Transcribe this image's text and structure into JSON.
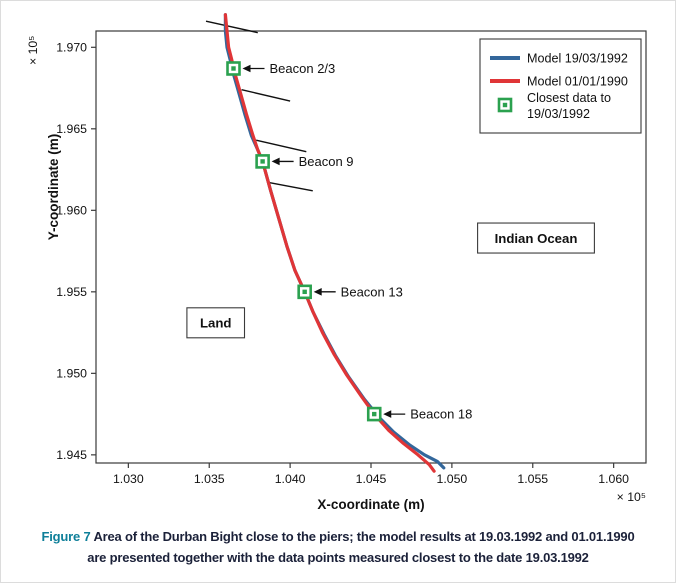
{
  "figure": {
    "label": "Figure 7",
    "caption_lines": [
      "Area of the Durban Bight close to the piers; the model results at 19.03.1992 and 01.01.1990",
      "are presented together with the data points measured closest to the date 19.03.1992"
    ]
  },
  "colors": {
    "model_1992": "#33679b",
    "model_1990": "#e03537",
    "closest_data": "#2ba14f",
    "caption_label": "#0e7f99",
    "caption_text": "#1b2139",
    "axis": "#3a3a3a",
    "text": "#111111"
  },
  "chart_data": {
    "type": "line",
    "title": "",
    "xlabel": "X-coordinate (m)",
    "ylabel": "Y-coordinate (m)",
    "axis_scale_label": "× 10⁵",
    "xlim": [
      1.028,
      1.062
    ],
    "ylim": [
      1.9445,
      1.971
    ],
    "xticks": [
      1.03,
      1.035,
      1.04,
      1.045,
      1.05,
      1.055,
      1.06
    ],
    "yticks": [
      1.945,
      1.95,
      1.955,
      1.96,
      1.965,
      1.97
    ],
    "tick_decimals": 3,
    "grid": false,
    "legend_position": "top-right",
    "series": [
      {
        "name": "Model 19/03/1992",
        "color_key": "model_1992",
        "points": [
          [
            1.036,
            1.972
          ],
          [
            1.036,
            1.971
          ],
          [
            1.0361,
            1.97
          ],
          [
            1.0363,
            1.9692
          ],
          [
            1.0364,
            1.9687
          ],
          [
            1.0368,
            1.9673
          ],
          [
            1.0372,
            1.9659
          ],
          [
            1.0376,
            1.9646
          ],
          [
            1.038,
            1.9637
          ],
          [
            1.0383,
            1.963
          ],
          [
            1.0388,
            1.9612
          ],
          [
            1.0393,
            1.9595
          ],
          [
            1.0398,
            1.9578
          ],
          [
            1.0403,
            1.9563
          ],
          [
            1.0409,
            1.955
          ],
          [
            1.0414,
            1.9538
          ],
          [
            1.0421,
            1.9524
          ],
          [
            1.0428,
            1.9511
          ],
          [
            1.0436,
            1.9498
          ],
          [
            1.0446,
            1.9484
          ],
          [
            1.0455,
            1.9473
          ],
          [
            1.0464,
            1.9464
          ],
          [
            1.0474,
            1.9456
          ],
          [
            1.0483,
            1.945
          ],
          [
            1.0491,
            1.9446
          ],
          [
            1.0495,
            1.9442
          ]
        ]
      },
      {
        "name": "Model 01/01/1990",
        "color_key": "model_1990",
        "points": [
          [
            1.036,
            1.972
          ],
          [
            1.0361,
            1.971
          ],
          [
            1.0362,
            1.97
          ],
          [
            1.0364,
            1.9692
          ],
          [
            1.0365,
            1.9687
          ],
          [
            1.0369,
            1.9673
          ],
          [
            1.0373,
            1.9659
          ],
          [
            1.0377,
            1.9646
          ],
          [
            1.038,
            1.9637
          ],
          [
            1.0383,
            1.963
          ],
          [
            1.0388,
            1.9612
          ],
          [
            1.0393,
            1.9595
          ],
          [
            1.0398,
            1.9578
          ],
          [
            1.0403,
            1.9563
          ],
          [
            1.0409,
            1.955
          ],
          [
            1.0414,
            1.9538
          ],
          [
            1.042,
            1.9525
          ],
          [
            1.0427,
            1.9512
          ],
          [
            1.0435,
            1.9499
          ],
          [
            1.0444,
            1.9486
          ],
          [
            1.0452,
            1.9475
          ],
          [
            1.0461,
            1.9465
          ],
          [
            1.047,
            1.9457
          ],
          [
            1.0479,
            1.945
          ],
          [
            1.0486,
            1.9444
          ],
          [
            1.0489,
            1.944
          ]
        ]
      }
    ],
    "closest_data_series": "Closest data to 19/03/1992",
    "beacons": [
      {
        "label": "Beacon 2/3",
        "x": 1.0365,
        "y": 1.9687
      },
      {
        "label": "Beacon 9",
        "x": 1.0383,
        "y": 1.963
      },
      {
        "label": "Beacon 13",
        "x": 1.0409,
        "y": 1.955
      },
      {
        "label": "Beacon 18",
        "x": 1.0452,
        "y": 1.9475
      }
    ],
    "piers": [
      [
        [
          1.0348,
          1.9716
        ],
        [
          1.038,
          1.9709
        ]
      ],
      [
        [
          1.037,
          1.9674
        ],
        [
          1.04,
          1.9667
        ]
      ],
      [
        [
          1.0379,
          1.9643
        ],
        [
          1.041,
          1.9636
        ]
      ],
      [
        [
          1.0387,
          1.9617
        ],
        [
          1.0414,
          1.9612
        ]
      ]
    ],
    "region_labels": [
      {
        "text": "Indian Ocean",
        "x": 1.0552,
        "y": 1.9583
      },
      {
        "text": "Land",
        "x": 1.0354,
        "y": 1.9531
      }
    ],
    "legend": {
      "items": [
        {
          "type": "line",
          "label": "Model 19/03/1992",
          "color_key": "model_1992"
        },
        {
          "type": "line",
          "label": "Model 01/01/1990",
          "color_key": "model_1990"
        },
        {
          "type": "marker",
          "label": "Closest data to 19/03/1992",
          "label_lines": [
            "Closest data to",
            "19/03/1992"
          ],
          "color_key": "closest_data"
        }
      ]
    }
  }
}
